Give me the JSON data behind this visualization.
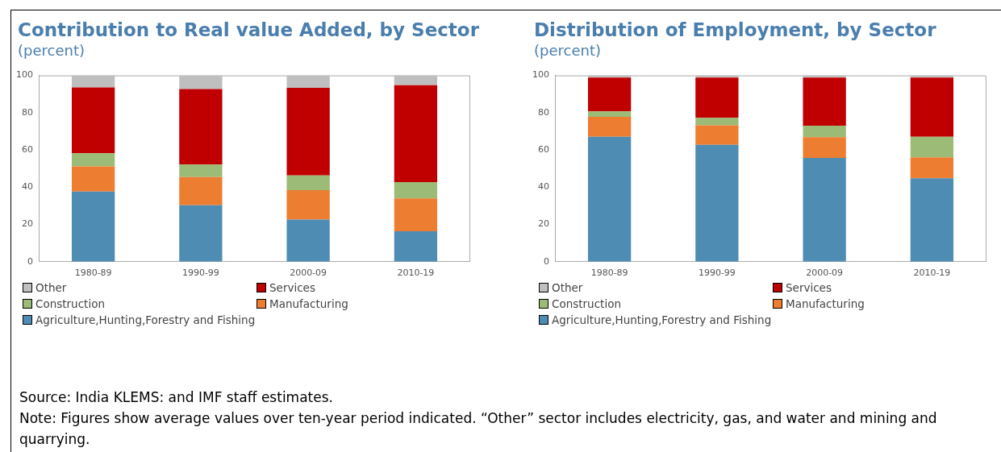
{
  "chart_data": [
    {
      "type": "bar",
      "title": "Contribution to Real value Added, by Sector",
      "subtitle": "(percent)",
      "categories": [
        "1980-89",
        "1990-99",
        "2000-09",
        "2010-19"
      ],
      "stacked": true,
      "legend": "bottom",
      "ylim": [
        0,
        100
      ],
      "yticks": [
        0,
        20,
        40,
        60,
        80,
        100
      ],
      "series": [
        {
          "name": "Agriculture,Hunting,Forestry and Fishing",
          "color": "#4f8cb4",
          "values": [
            37.7,
            30.3,
            22.6,
            16.3
          ]
        },
        {
          "name": "Manufacturing",
          "color": "#ed7d31",
          "values": [
            13.5,
            15.1,
            15.8,
            17.7
          ]
        },
        {
          "name": "Construction",
          "color": "#9bbb77",
          "values": [
            7.0,
            6.7,
            7.9,
            8.7
          ]
        },
        {
          "name": "Services",
          "color": "#c00000",
          "values": [
            35.4,
            40.6,
            47.0,
            52.0
          ]
        },
        {
          "name": "Other",
          "color": "#bfbfbf",
          "values": [
            6.4,
            7.3,
            6.7,
            5.3
          ]
        }
      ],
      "annotations": [
        "Source: India KLEMS: and IMF staff estimates.",
        "Note: Figures show average values over ten-year period indicated. “Other” sector includes electricity, gas, and water and mining and quarrying."
      ]
    },
    {
      "type": "bar",
      "title": "Distribution of Employment, by Sector",
      "subtitle": "(percent)",
      "categories": [
        "1980-89",
        "1990-99",
        "2000-09",
        "2010-19"
      ],
      "stacked": true,
      "legend": "bottom",
      "ylim": [
        0,
        100
      ],
      "yticks": [
        0,
        20,
        40,
        60,
        80,
        100
      ],
      "series": [
        {
          "name": "Agriculture,Hunting,Forestry and Fishing",
          "color": "#4f8cb4",
          "values": [
            67.1,
            62.7,
            55.7,
            44.8
          ]
        },
        {
          "name": "Manufacturing",
          "color": "#ed7d31",
          "values": [
            10.7,
            10.5,
            11.2,
            11.2
          ]
        },
        {
          "name": "Construction",
          "color": "#9bbb77",
          "values": [
            2.9,
            4.0,
            6.1,
            11.1
          ]
        },
        {
          "name": "Services",
          "color": "#c00000",
          "values": [
            18.2,
            21.7,
            25.9,
            31.8
          ]
        },
        {
          "name": "Other",
          "color": "#bfbfbf",
          "values": [
            1.1,
            1.1,
            1.1,
            1.1
          ]
        }
      ]
    }
  ]
}
